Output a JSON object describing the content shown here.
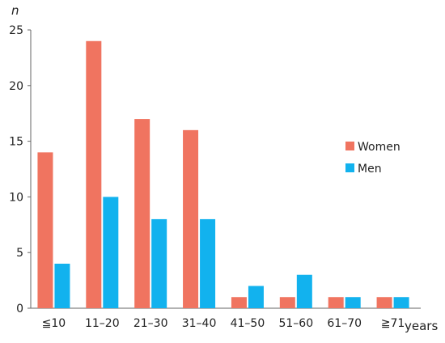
{
  "chart_data": {
    "type": "bar",
    "title": "",
    "xlabel": "years",
    "ylabel": "n",
    "ylim": [
      0,
      25
    ],
    "yticks": [
      "0",
      "5",
      "10",
      "15",
      "20",
      "25"
    ],
    "grid": false,
    "legend_position": "right",
    "categories": [
      "≦10",
      "11–20",
      "21–30",
      "31–40",
      "41–50",
      "51–60",
      "61–70",
      "≧71"
    ],
    "series": [
      {
        "name": "Women",
        "color": "#F07460",
        "values": [
          14,
          24,
          17,
          16,
          1,
          1,
          1,
          1
        ]
      },
      {
        "name": "Men",
        "color": "#12B2EE",
        "values": [
          4,
          10,
          8,
          8,
          2,
          3,
          1,
          1
        ]
      }
    ]
  }
}
